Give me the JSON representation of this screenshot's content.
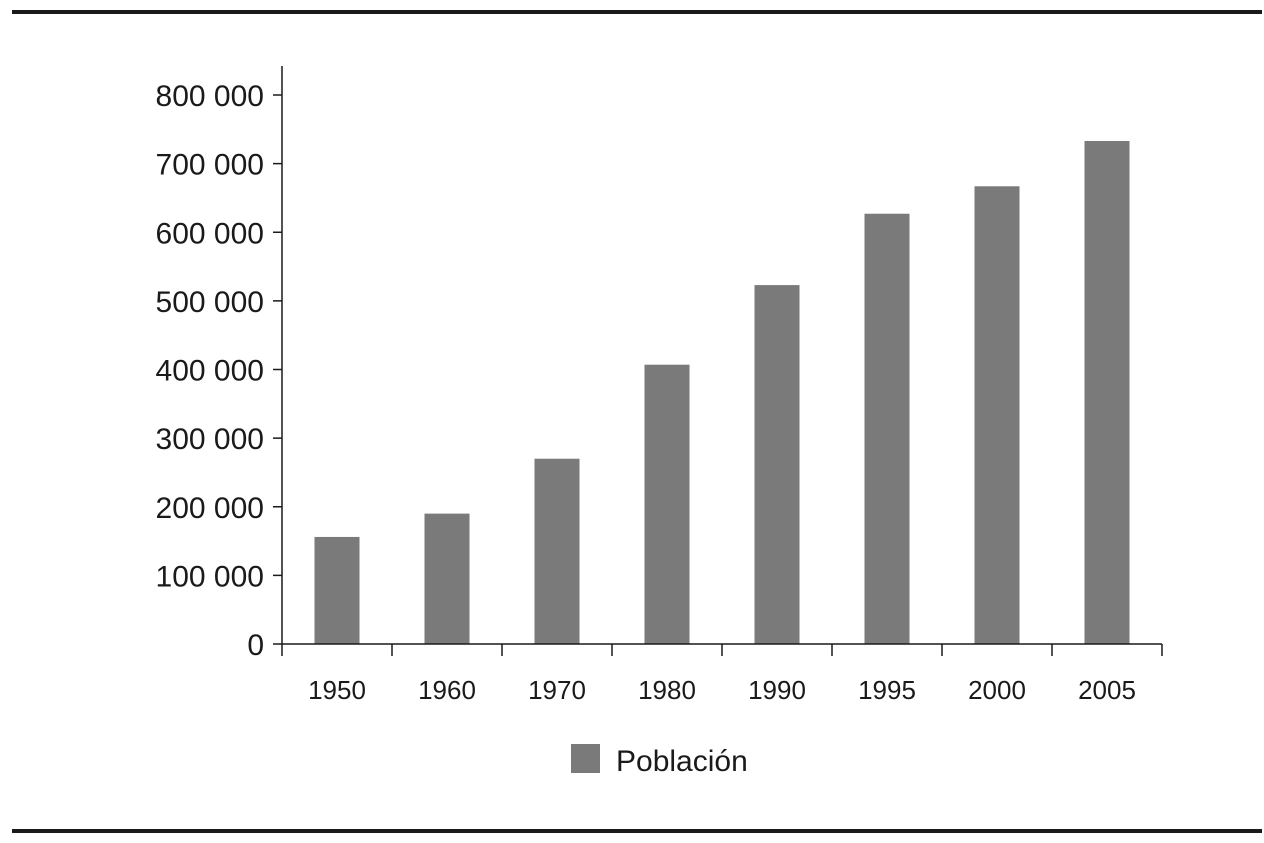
{
  "chart_data": {
    "type": "bar",
    "title": "",
    "xlabel": "",
    "ylabel": "",
    "categories": [
      "1950",
      "1960",
      "1970",
      "1980",
      "1990",
      "1995",
      "2000",
      "2005"
    ],
    "series": [
      {
        "name": "Población",
        "values": [
          156000,
          190000,
          270000,
          407000,
          523000,
          627000,
          667000,
          733000
        ]
      }
    ],
    "ylim": [
      0,
      800000
    ],
    "yticks": [
      0,
      100000,
      200000,
      300000,
      400000,
      500000,
      600000,
      700000,
      800000
    ],
    "ytick_labels": [
      "0",
      "100 000",
      "200 000",
      "300 000",
      "400 000",
      "500 000",
      "600 000",
      "700 000",
      "800 000"
    ],
    "grid": false,
    "legend_position": "bottom-center",
    "bar_color": "#7b7a7b"
  }
}
